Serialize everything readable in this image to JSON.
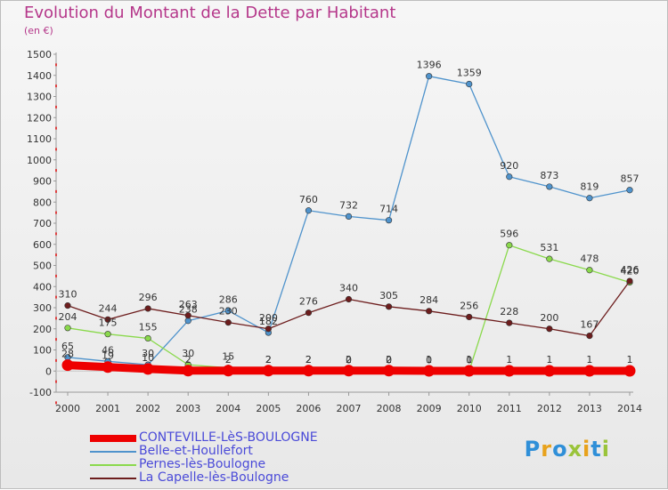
{
  "chart_data": {
    "type": "line",
    "title": "Evolution du Montant de la Dette par Habitant",
    "subtitle": "(en €)",
    "x": [
      2000,
      2001,
      2002,
      2003,
      2004,
      2005,
      2006,
      2007,
      2008,
      2009,
      2010,
      2011,
      2012,
      2013,
      2014
    ],
    "ylim": [
      -100,
      1500
    ],
    "yticks": [
      -100,
      0,
      100,
      200,
      300,
      400,
      500,
      600,
      700,
      800,
      900,
      1000,
      1100,
      1200,
      1300,
      1400,
      1500
    ],
    "grid": false,
    "legend_position": "bottom-left",
    "series": [
      {
        "name": "CONTEVILLE-LèS-BOULOGNE",
        "color": "#ee0000",
        "width": 9,
        "values": [
          28,
          19,
          10,
          2,
          2,
          2,
          2,
          2,
          2,
          1,
          1,
          1,
          1,
          1,
          1
        ],
        "labels": [
          "28",
          "19",
          "10",
          "2",
          "2",
          "2",
          "2",
          "2",
          "2",
          "1",
          "1",
          "1",
          "1",
          "1",
          "1"
        ]
      },
      {
        "name": "Belle-et-Houllefort",
        "color": "#4f93cc",
        "width": 1.3,
        "values": [
          65,
          46,
          30,
          238,
          286,
          182,
          760,
          732,
          714,
          1396,
          1359,
          920,
          873,
          819,
          857
        ],
        "labels": [
          "65",
          "46",
          "30",
          "238",
          "286",
          "182",
          "760",
          "732",
          "714",
          "1396",
          "1359",
          "920",
          "873",
          "819",
          "857"
        ]
      },
      {
        "name": "Pernes-lès-Boulogne",
        "color": "#8ad94c",
        "width": 1.3,
        "values": [
          204,
          175,
          155,
          30,
          15,
          2,
          2,
          0,
          0,
          0,
          0,
          596,
          531,
          478,
          420
        ],
        "labels": [
          "204",
          "175",
          "155",
          "30",
          "15",
          "2",
          "2",
          "0",
          "0",
          "0",
          "0",
          "596",
          "531",
          "478",
          "420"
        ]
      },
      {
        "name": "La Capelle-lès-Boulogne",
        "color": "#6d1d1d",
        "width": 1.3,
        "values": [
          310,
          244,
          296,
          263,
          230,
          200,
          276,
          340,
          305,
          284,
          256,
          228,
          200,
          167,
          426
        ],
        "labels": [
          "310",
          "244",
          "296",
          "263",
          "230",
          "200",
          "276",
          "340",
          "305",
          "284",
          "256",
          "228",
          "200",
          "167",
          "426"
        ]
      }
    ]
  },
  "brand": {
    "logo_text": "Proxiti"
  }
}
